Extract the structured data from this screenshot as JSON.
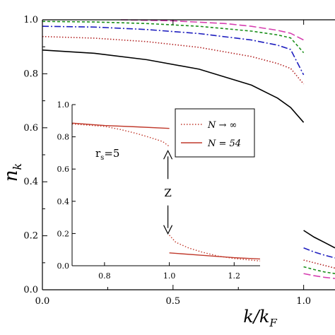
{
  "chart_data": [
    {
      "type": "line",
      "role": "main",
      "xlabel": "k/k_F",
      "ylabel": "n_k",
      "xlim": [
        0.0,
        1.12
      ],
      "ylim": [
        0.0,
        1.0
      ],
      "xticks": [
        "0.0",
        "0.5",
        "1.0"
      ],
      "xtick_values": [
        0.0,
        0.5,
        1.0
      ],
      "yticks": [
        "0.0",
        "0.2",
        "0.4",
        "0.6",
        "0.8",
        "1.0"
      ],
      "ytick_values": [
        0.0,
        0.2,
        0.4,
        0.6,
        0.8,
        1.0
      ],
      "series": [
        {
          "color": "#000000",
          "dash": "solid",
          "x": [
            0.0,
            0.2,
            0.4,
            0.6,
            0.8,
            0.9,
            0.95,
            1.0
          ],
          "y": [
            0.888,
            0.876,
            0.852,
            0.817,
            0.758,
            0.71,
            0.675,
            0.62
          ],
          "x2": [
            1.0,
            1.04,
            1.08,
            1.12
          ],
          "y2": [
            0.22,
            0.195,
            0.175,
            0.155
          ]
        },
        {
          "color": "#b22222",
          "dash": "dotted",
          "x": [
            0.0,
            0.2,
            0.4,
            0.6,
            0.8,
            0.9,
            0.95,
            1.0
          ],
          "y": [
            0.938,
            0.932,
            0.919,
            0.898,
            0.864,
            0.838,
            0.82,
            0.762
          ],
          "x2": [
            1.0,
            1.04,
            1.08,
            1.12
          ],
          "y2": [
            0.11,
            0.1,
            0.09,
            0.08
          ]
        },
        {
          "color": "#1f1fbf",
          "dash": "dashdot",
          "x": [
            0.0,
            0.2,
            0.4,
            0.6,
            0.8,
            0.9,
            0.95,
            1.0
          ],
          "y": [
            0.976,
            0.973,
            0.964,
            0.949,
            0.925,
            0.906,
            0.89,
            0.796
          ],
          "x2": [
            1.0,
            1.04,
            1.08,
            1.12
          ],
          "y2": [
            0.155,
            0.14,
            0.128,
            0.118
          ]
        },
        {
          "color": "#1a8f1a",
          "dash": "shortdash",
          "x": [
            0.0,
            0.2,
            0.4,
            0.6,
            0.8,
            0.9,
            0.95,
            1.0
          ],
          "y": [
            0.994,
            0.992,
            0.986,
            0.976,
            0.958,
            0.944,
            0.933,
            0.878
          ],
          "x2": [
            1.0,
            1.04,
            1.08,
            1.12
          ],
          "y2": [
            0.085,
            0.075,
            0.066,
            0.06
          ]
        },
        {
          "color": "#d63fb0",
          "dash": "longdash",
          "x": [
            0.3,
            0.5,
            0.7,
            0.8,
            0.9,
            0.95,
            1.0
          ],
          "y": [
            1.0,
            0.996,
            0.986,
            0.976,
            0.961,
            0.95,
            0.925
          ],
          "x2": [
            1.0,
            1.04,
            1.08,
            1.12
          ],
          "y2": [
            0.06,
            0.052,
            0.046,
            0.042
          ]
        }
      ]
    },
    {
      "type": "line",
      "role": "inset",
      "xlim": [
        0.7,
        1.28
      ],
      "ylim": [
        0.0,
        1.0
      ],
      "xticks": [
        "0.8",
        "1.0",
        "1.2"
      ],
      "xtick_values": [
        0.8,
        1.0,
        1.2
      ],
      "yticks": [
        "0.0",
        "0.2",
        "0.4",
        "0.6",
        "0.8",
        "1.0"
      ],
      "ytick_values": [
        0.0,
        0.2,
        0.4,
        0.6,
        0.8,
        1.0
      ],
      "legend_position": "top-right",
      "series": [
        {
          "name": "N → ∞",
          "color": "#c0392b",
          "dash": "dotted",
          "x": [
            0.7,
            0.8,
            0.85,
            0.9,
            0.95,
            0.98,
            1.0
          ],
          "y": [
            0.88,
            0.865,
            0.845,
            0.82,
            0.79,
            0.77,
            0.74
          ],
          "x2": [
            1.0,
            1.02,
            1.06,
            1.1,
            1.15,
            1.2,
            1.28
          ],
          "y2": [
            0.19,
            0.145,
            0.11,
            0.085,
            0.06,
            0.045,
            0.03
          ]
        },
        {
          "name": "N = 54",
          "color": "#c0392b",
          "dash": "solid",
          "x": [
            0.7,
            0.8,
            0.9,
            1.0
          ],
          "y": [
            0.885,
            0.87,
            0.862,
            0.852
          ],
          "x2": [
            1.0,
            1.1,
            1.2,
            1.28
          ],
          "y2": [
            0.08,
            0.065,
            0.05,
            0.042
          ]
        }
      ],
      "annotations": {
        "rs_label": "r",
        "rs_sub": "s",
        "rs_value": "=5",
        "z_label": "Z"
      }
    }
  ]
}
